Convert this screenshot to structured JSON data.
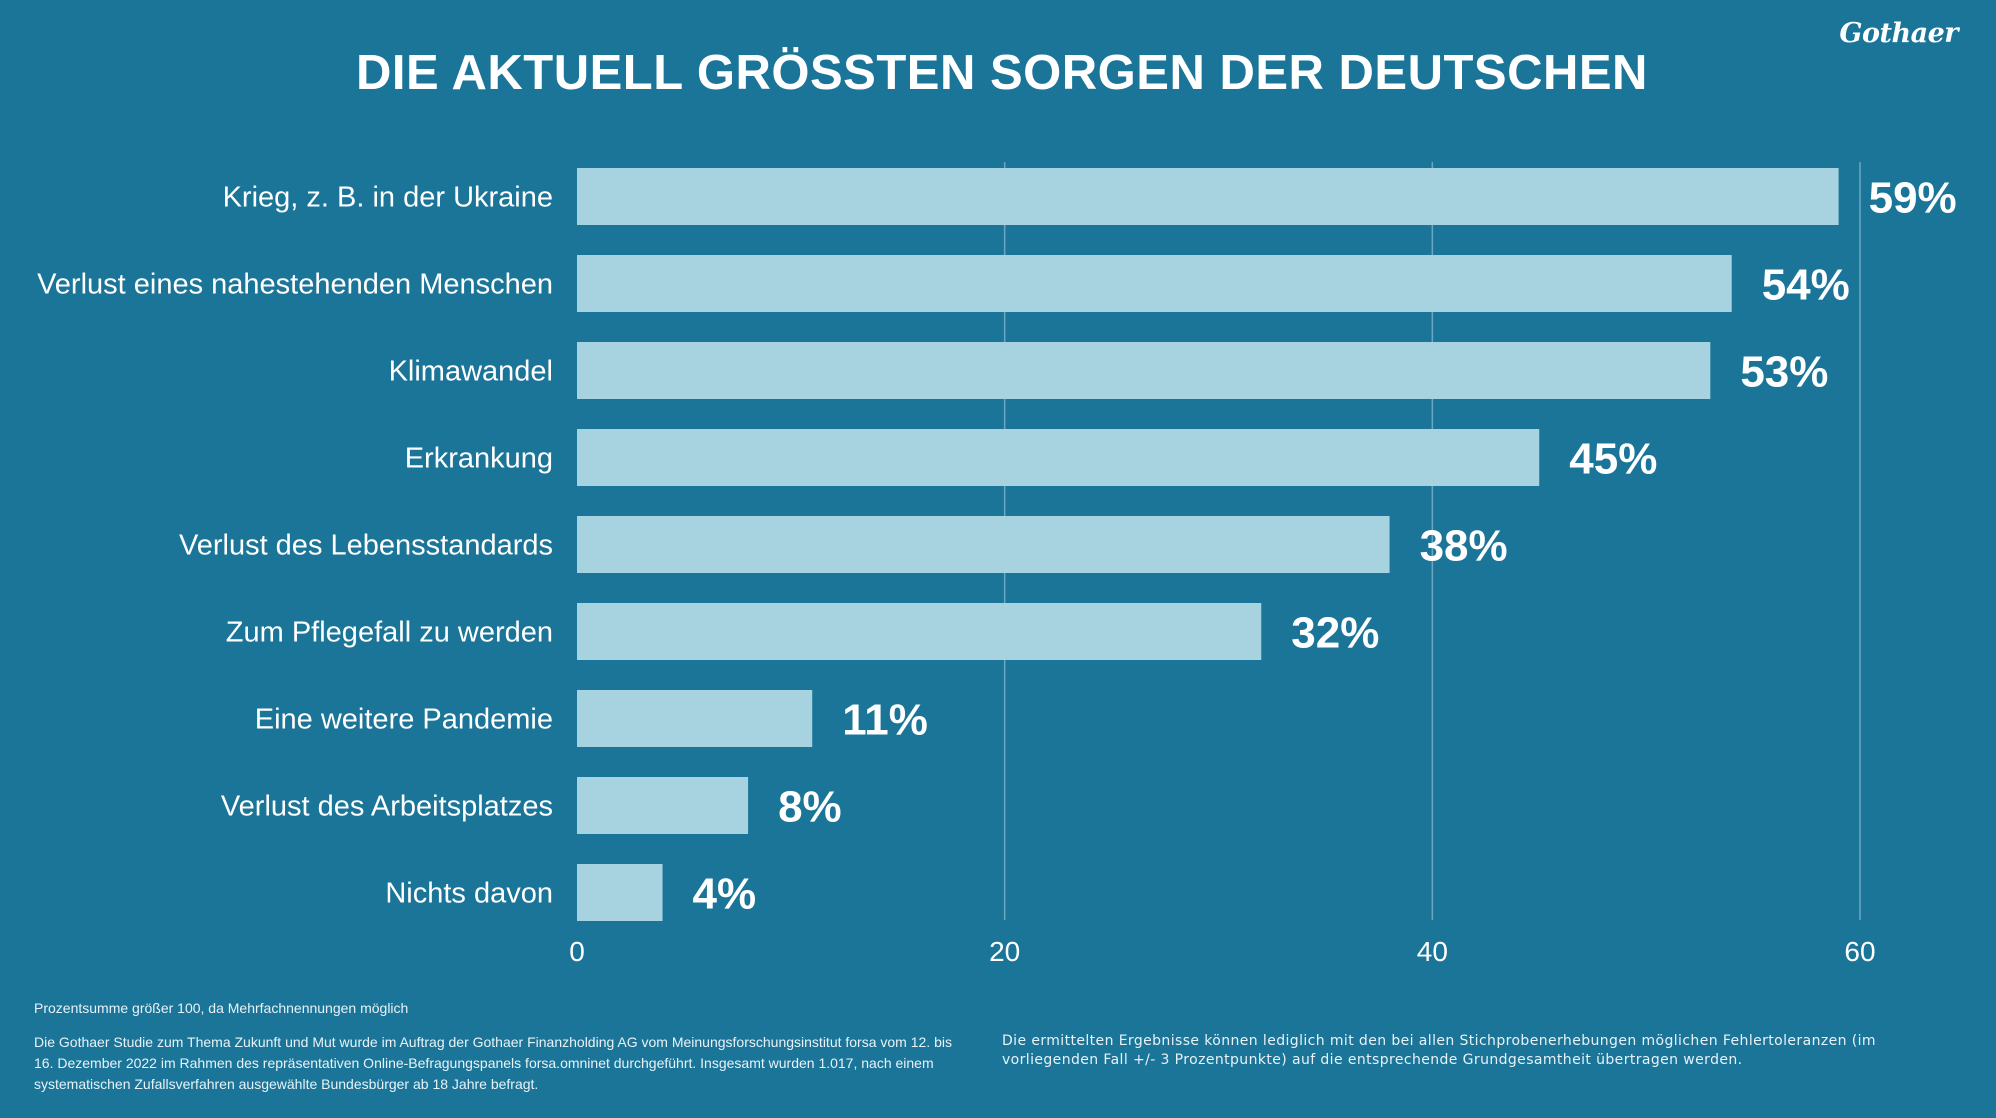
{
  "logo_text": "Gothaer",
  "title": "DIE AKTUELL GRÖSSTEN SORGEN DER DEUTSCHEN",
  "chart_data": {
    "type": "bar",
    "orientation": "horizontal",
    "categories": [
      "Krieg, z. B. in der Ukraine",
      "Verlust eines nahestehenden Menschen",
      "Klimawandel",
      "Erkrankung",
      "Verlust des Lebensstandards",
      "Zum Pflegefall zu werden",
      "Eine weitere Pandemie",
      "Verlust des Arbeitsplatzes",
      "Nichts davon"
    ],
    "values": [
      59,
      54,
      53,
      45,
      38,
      32,
      11,
      8,
      4
    ],
    "value_labels": [
      "59%",
      "54%",
      "53%",
      "45%",
      "38%",
      "32%",
      "11%",
      "8%",
      "4%"
    ],
    "xlim": [
      0,
      60
    ],
    "xticks": [
      0,
      20,
      40,
      60
    ],
    "xlabel": "",
    "ylabel": "",
    "grid": "vertical",
    "colors": {
      "background": "#1b7599",
      "bar": "#a6d3df",
      "grid": "#6aa8c2",
      "text": "#ffffff"
    }
  },
  "footnotes": {
    "note1": "Prozentsumme größer 100, da Mehrfachnennungen möglich",
    "note2": "Die Gothaer Studie zum Thema Zukunft und Mut wurde im Auftrag der Gothaer Finanzholding AG vom Meinungsforschungsinstitut forsa vom 12. bis 16. Dezember 2022 im Rahmen des repräsentativen Online-Befragungspanels forsa.omninet durchgeführt. Insgesamt wurden 1.017, nach einem systematischen Zufallsverfahren ausgewählte Bundesbürger ab 18 Jahre befragt.",
    "note3": "Die ermittelten Ergebnisse können lediglich mit den bei allen Stichprobenerhebungen möglichen Fehlertoleranzen (im vorliegenden Fall +/- 3 Prozentpunkte) auf die entsprechende Grundgesamtheit übertragen werden."
  }
}
